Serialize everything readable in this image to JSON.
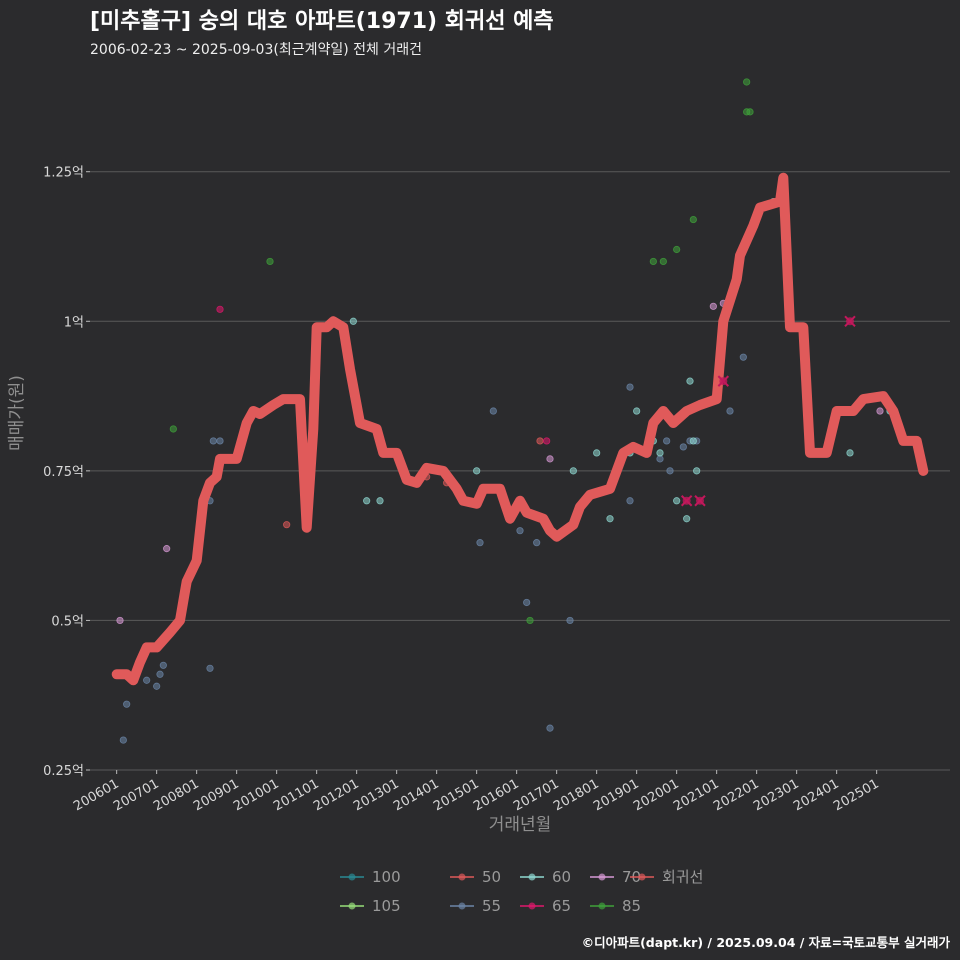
{
  "title": "[미추홀구] 숭의 대호 아파트(1971) 회귀선 예측",
  "subtitle": "2006-02-23 ~ 2025-09-03(최근계약일) 전체 거래건",
  "caption": "©디아파트(dapt.kr) / 2025.09.04 / 자료=국토교통부 실거래가",
  "colors": {
    "background": "#2b2b2d",
    "grid": "#5a5a5a",
    "regression": "#e05a5a",
    "s100": "#2a8a94",
    "s50": "#e05a5a",
    "s60": "#8fd9d2",
    "s70": "#d89ad6",
    "s105": "#98e07a",
    "s55": "#6c86a8",
    "s65": "#e0186c",
    "s85": "#3fa23a"
  },
  "chart_data": {
    "type": "scatter",
    "xlabel": "거래년월",
    "ylabel": "매매가(원)",
    "xlim": [
      "2005-05",
      "2026-11"
    ],
    "ylim": [
      0.25,
      1.42
    ],
    "grid": true,
    "legend_position": "bottom",
    "x_ticks": [
      "200601",
      "200701",
      "200801",
      "200901",
      "201001",
      "201101",
      "201201",
      "201301",
      "201401",
      "201501",
      "201601",
      "201701",
      "201801",
      "201901",
      "202001",
      "202101",
      "202201",
      "202301",
      "202401",
      "202501"
    ],
    "y_ticks": [
      {
        "value": 0.25,
        "label": "0.25억"
      },
      {
        "value": 0.5,
        "label": "0.5억"
      },
      {
        "value": 0.75,
        "label": "0.75억"
      },
      {
        "value": 1.0,
        "label": "1억"
      },
      {
        "value": 1.25,
        "label": "1.25억"
      }
    ],
    "legend": [
      {
        "label": "100",
        "color_key": "s100"
      },
      {
        "label": "50",
        "color_key": "s50"
      },
      {
        "label": "60",
        "color_key": "s60"
      },
      {
        "label": "70",
        "color_key": "s70"
      },
      {
        "label": "회귀선",
        "color_key": "regression"
      },
      {
        "label": "105",
        "color_key": "s105"
      },
      {
        "label": "55",
        "color_key": "s55"
      },
      {
        "label": "65",
        "color_key": "s65"
      },
      {
        "label": "85",
        "color_key": "s85"
      }
    ],
    "series": [
      {
        "name": "50",
        "color_key": "s50",
        "points": [
          [
            "2006-04",
            0.41
          ],
          [
            "2006-08",
            0.43
          ],
          [
            "2010-04",
            0.66
          ],
          [
            "2013-10",
            0.74
          ],
          [
            "2014-04",
            0.73
          ],
          [
            "2016-08",
            0.8
          ]
        ]
      },
      {
        "name": "55",
        "color_key": "s55",
        "points": [
          [
            "2006-03",
            0.3
          ],
          [
            "2006-04",
            0.36
          ],
          [
            "2006-10",
            0.4
          ],
          [
            "2007-01",
            0.39
          ],
          [
            "2007-02",
            0.41
          ],
          [
            "2007-03",
            0.425
          ],
          [
            "2008-05",
            0.42
          ],
          [
            "2008-05",
            0.7
          ],
          [
            "2008-06",
            0.8
          ],
          [
            "2008-08",
            0.8
          ],
          [
            "2015-02",
            0.63
          ],
          [
            "2015-06",
            0.85
          ],
          [
            "2016-02",
            0.65
          ],
          [
            "2016-04",
            0.53
          ],
          [
            "2016-07",
            0.63
          ],
          [
            "2016-11",
            0.32
          ],
          [
            "2017-05",
            0.5
          ],
          [
            "2018-11",
            0.89
          ],
          [
            "2018-11",
            0.7
          ],
          [
            "2019-08",
            0.77
          ],
          [
            "2019-10",
            0.8
          ],
          [
            "2019-11",
            0.75
          ],
          [
            "2020-03",
            0.79
          ],
          [
            "2020-05",
            0.8
          ],
          [
            "2020-07",
            0.8
          ],
          [
            "2021-05",
            0.85
          ],
          [
            "2021-09",
            0.94
          ]
        ]
      },
      {
        "name": "60",
        "color_key": "s60",
        "points": [
          [
            "2006-09",
            0.44
          ],
          [
            "2011-12",
            1.0
          ],
          [
            "2012-04",
            0.7
          ],
          [
            "2012-08",
            0.7
          ],
          [
            "2015-01",
            0.75
          ],
          [
            "2017-06",
            0.75
          ],
          [
            "2018-01",
            0.78
          ],
          [
            "2018-05",
            0.67
          ],
          [
            "2018-11",
            0.78
          ],
          [
            "2019-01",
            0.85
          ],
          [
            "2019-06",
            0.8
          ],
          [
            "2019-08",
            0.78
          ],
          [
            "2020-01",
            0.7
          ],
          [
            "2020-04",
            0.67
          ],
          [
            "2020-05",
            0.9
          ],
          [
            "2020-06",
            0.8
          ],
          [
            "2020-07",
            0.75
          ],
          [
            "2022-06",
            1.2
          ],
          [
            "2023-05",
            0.78
          ],
          [
            "2024-05",
            0.78
          ],
          [
            "2025-05",
            0.85
          ]
        ]
      },
      {
        "name": "65",
        "color_key": "s65",
        "points": [
          [
            "2008-08",
            1.02
          ],
          [
            "2016-10",
            0.8
          ],
          [
            "2019-04",
            0.78
          ]
        ]
      },
      {
        "name": "70",
        "color_key": "s70",
        "points": [
          [
            "2006-02",
            0.5
          ],
          [
            "2007-04",
            0.62
          ],
          [
            "2016-11",
            0.77
          ],
          [
            "2019-04",
            0.78
          ],
          [
            "2020-12",
            1.025
          ],
          [
            "2021-03",
            1.03
          ],
          [
            "2025-02",
            0.85
          ]
        ]
      },
      {
        "name": "85",
        "color_key": "s85",
        "points": [
          [
            "2007-06",
            0.82
          ],
          [
            "2009-11",
            1.1
          ],
          [
            "2016-05",
            0.5
          ],
          [
            "2019-06",
            1.1
          ],
          [
            "2019-09",
            1.1
          ],
          [
            "2020-01",
            1.12
          ],
          [
            "2020-06",
            1.17
          ],
          [
            "2021-10",
            1.4
          ],
          [
            "2021-10",
            1.35
          ],
          [
            "2021-11",
            1.35
          ]
        ]
      },
      {
        "name": "100",
        "color_key": "s100",
        "points": []
      },
      {
        "name": "105",
        "color_key": "s105",
        "points": []
      }
    ],
    "cancelled": [
      [
        "2020-04",
        0.7
      ],
      [
        "2020-08",
        0.7
      ],
      [
        "2021-03",
        0.9
      ],
      [
        "2024-05",
        1.0
      ]
    ],
    "regression": [
      [
        "2006-01",
        0.41
      ],
      [
        "2006-04",
        0.41
      ],
      [
        "2006-06",
        0.4
      ],
      [
        "2006-08",
        0.43
      ],
      [
        "2006-10",
        0.455
      ],
      [
        "2007-01",
        0.455
      ],
      [
        "2007-05",
        0.48
      ],
      [
        "2007-08",
        0.5
      ],
      [
        "2007-10",
        0.565
      ],
      [
        "2008-01",
        0.6
      ],
      [
        "2008-03",
        0.7
      ],
      [
        "2008-05",
        0.73
      ],
      [
        "2008-07",
        0.74
      ],
      [
        "2008-08",
        0.77
      ],
      [
        "2009-01",
        0.77
      ],
      [
        "2009-04",
        0.83
      ],
      [
        "2009-06",
        0.85
      ],
      [
        "2009-08",
        0.845
      ],
      [
        "2009-12",
        0.86
      ],
      [
        "2010-03",
        0.87
      ],
      [
        "2010-08",
        0.87
      ],
      [
        "2010-10",
        0.655
      ],
      [
        "2010-12",
        0.82
      ],
      [
        "2011-01",
        0.99
      ],
      [
        "2011-04",
        0.99
      ],
      [
        "2011-06",
        1.0
      ],
      [
        "2011-09",
        0.99
      ],
      [
        "2011-11",
        0.92
      ],
      [
        "2012-02",
        0.83
      ],
      [
        "2012-07",
        0.82
      ],
      [
        "2012-09",
        0.78
      ],
      [
        "2013-01",
        0.78
      ],
      [
        "2013-04",
        0.735
      ],
      [
        "2013-07",
        0.73
      ],
      [
        "2013-10",
        0.755
      ],
      [
        "2014-03",
        0.75
      ],
      [
        "2014-07",
        0.72
      ],
      [
        "2014-09",
        0.7
      ],
      [
        "2015-01",
        0.695
      ],
      [
        "2015-03",
        0.72
      ],
      [
        "2015-08",
        0.72
      ],
      [
        "2015-11",
        0.67
      ],
      [
        "2016-02",
        0.7
      ],
      [
        "2016-04",
        0.68
      ],
      [
        "2016-09",
        0.67
      ],
      [
        "2016-11",
        0.65
      ],
      [
        "2017-01",
        0.64
      ],
      [
        "2017-06",
        0.66
      ],
      [
        "2017-08",
        0.69
      ],
      [
        "2017-11",
        0.71
      ],
      [
        "2018-05",
        0.72
      ],
      [
        "2018-09",
        0.78
      ],
      [
        "2018-12",
        0.79
      ],
      [
        "2019-02",
        0.785
      ],
      [
        "2019-04",
        0.78
      ],
      [
        "2019-06",
        0.83
      ],
      [
        "2019-09",
        0.85
      ],
      [
        "2019-12",
        0.83
      ],
      [
        "2020-04",
        0.85
      ],
      [
        "2020-08",
        0.86
      ],
      [
        "2021-01",
        0.87
      ],
      [
        "2021-03",
        1.0
      ],
      [
        "2021-07",
        1.07
      ],
      [
        "2021-08",
        1.11
      ],
      [
        "2021-12",
        1.16
      ],
      [
        "2022-02",
        1.19
      ],
      [
        "2022-08",
        1.2
      ],
      [
        "2022-09",
        1.24
      ],
      [
        "2022-11",
        0.99
      ],
      [
        "2023-03",
        0.99
      ],
      [
        "2023-05",
        0.78
      ],
      [
        "2023-10",
        0.78
      ],
      [
        "2024-01",
        0.85
      ],
      [
        "2024-06",
        0.85
      ],
      [
        "2024-09",
        0.87
      ],
      [
        "2025-03",
        0.875
      ],
      [
        "2025-06",
        0.85
      ],
      [
        "2025-09",
        0.8
      ],
      [
        "2026-01",
        0.8
      ],
      [
        "2026-03",
        0.75
      ]
    ]
  }
}
